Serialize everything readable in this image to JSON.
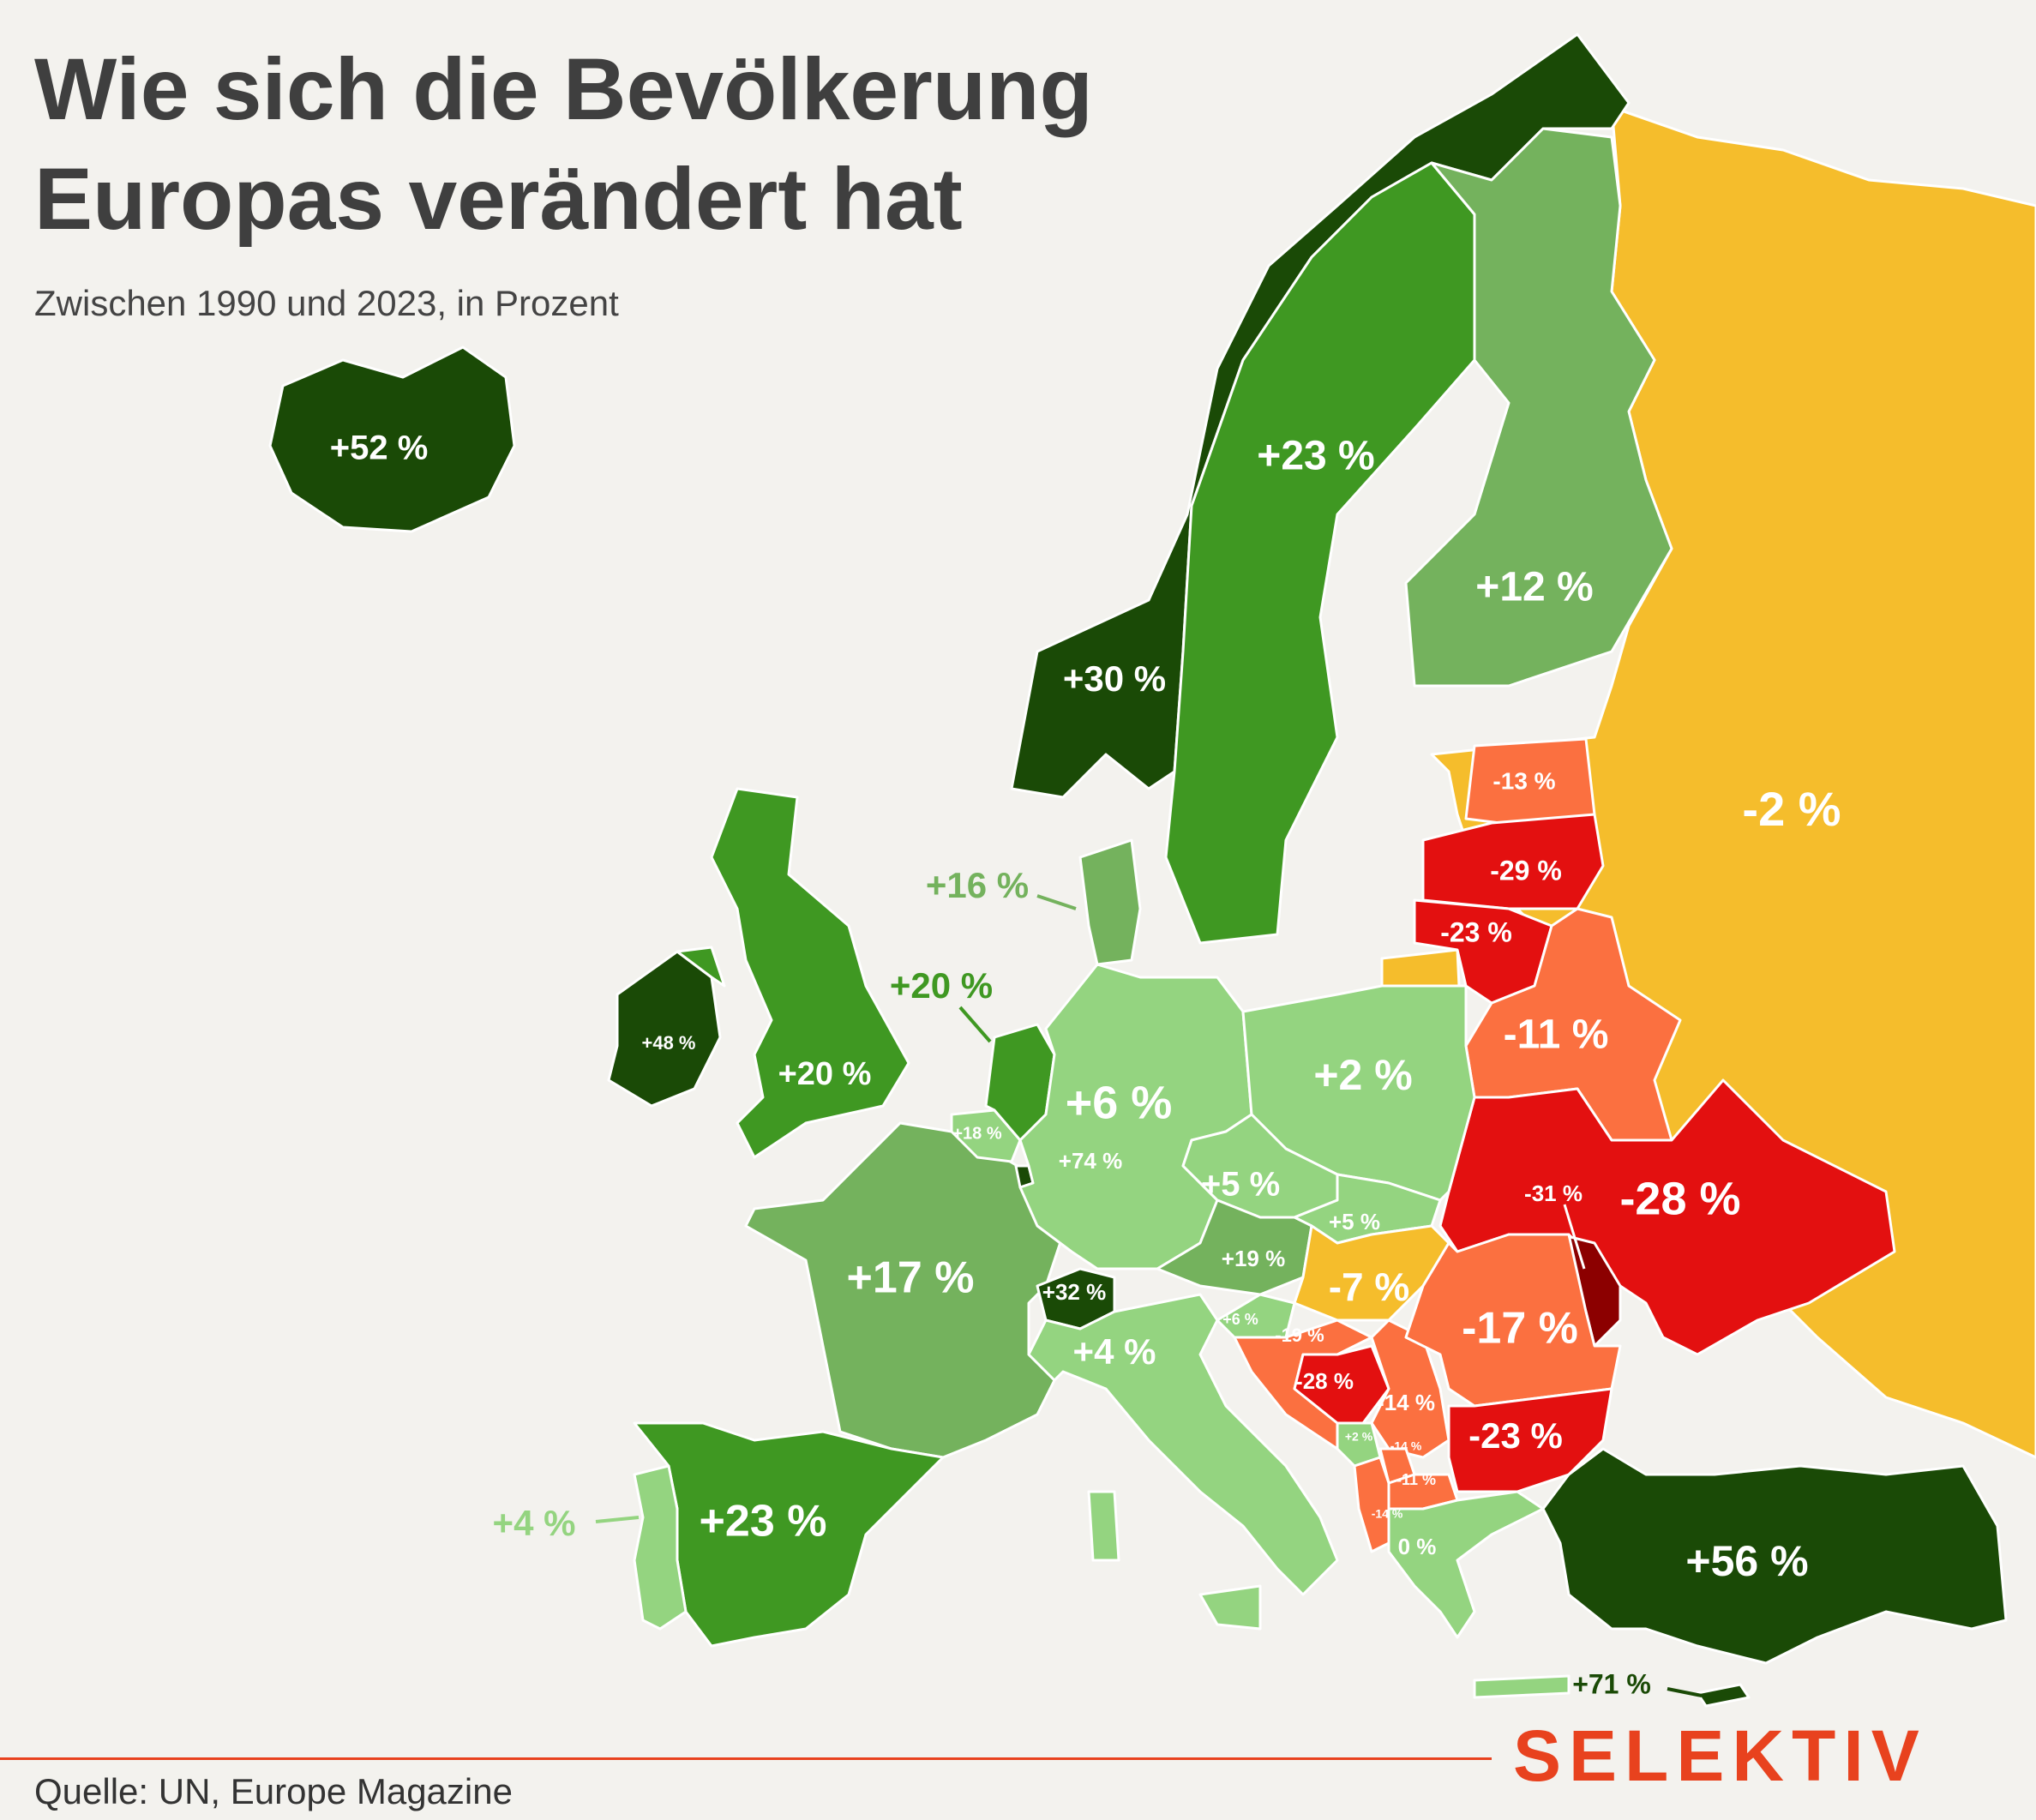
{
  "header": {
    "title": "Wie sich die Bevölkerung Europas verändert hat",
    "subtitle": "Zwischen 1990 und 2023, in Prozent"
  },
  "footer": {
    "source": "Quelle: UN, Europe Magazine",
    "brand": "SELEKTIV"
  },
  "colors": {
    "background": "#f3f2ee",
    "dark_green": "#1a4a06",
    "green": "#3f9822",
    "mid_green": "#74b25d",
    "light_green": "#94d480",
    "yellow": "#f5bd2c",
    "orange": "#fb7040",
    "red": "#e31010",
    "dark_red": "#8c0000",
    "accent": "#e8421e"
  },
  "map": {
    "labels": {
      "iceland": "+52 %",
      "norway": "+30 %",
      "sweden": "+23 %",
      "finland": "+12 %",
      "russia": "-2 %",
      "estonia": "-13 %",
      "latvia": "-29 %",
      "lithuania": "-23 %",
      "belarus": "-11 %",
      "denmark": "+16 %",
      "netherlands": "+20 %",
      "uk": "+20 %",
      "ireland": "+48 %",
      "belgium": "+18 %",
      "luxembourg": "+74 %",
      "germany": "+6 %",
      "poland": "+2 %",
      "czechia": "+5 %",
      "slovakia": "+5 %",
      "austria": "+19 %",
      "hungary": "-7 %",
      "ukraine": "-28 %",
      "moldova": "-31 %",
      "france": "+17 %",
      "switzerland": "+32 %",
      "italy": "+4 %",
      "slovenia": "+6 %",
      "croatia": "-19 %",
      "bosnia": "-28 %",
      "serbia": "-14 %",
      "romania": "-17 %",
      "bulgaria": "-23 %",
      "montenegro": "+2 %",
      "kosovo": "-14 %",
      "north_macedonia": "-11 %",
      "albania": "-14 %",
      "greece": "0 %",
      "turkey": "+56 %",
      "cyprus": "+71 %",
      "spain": "+23 %",
      "portugal": "+4 %"
    }
  }
}
